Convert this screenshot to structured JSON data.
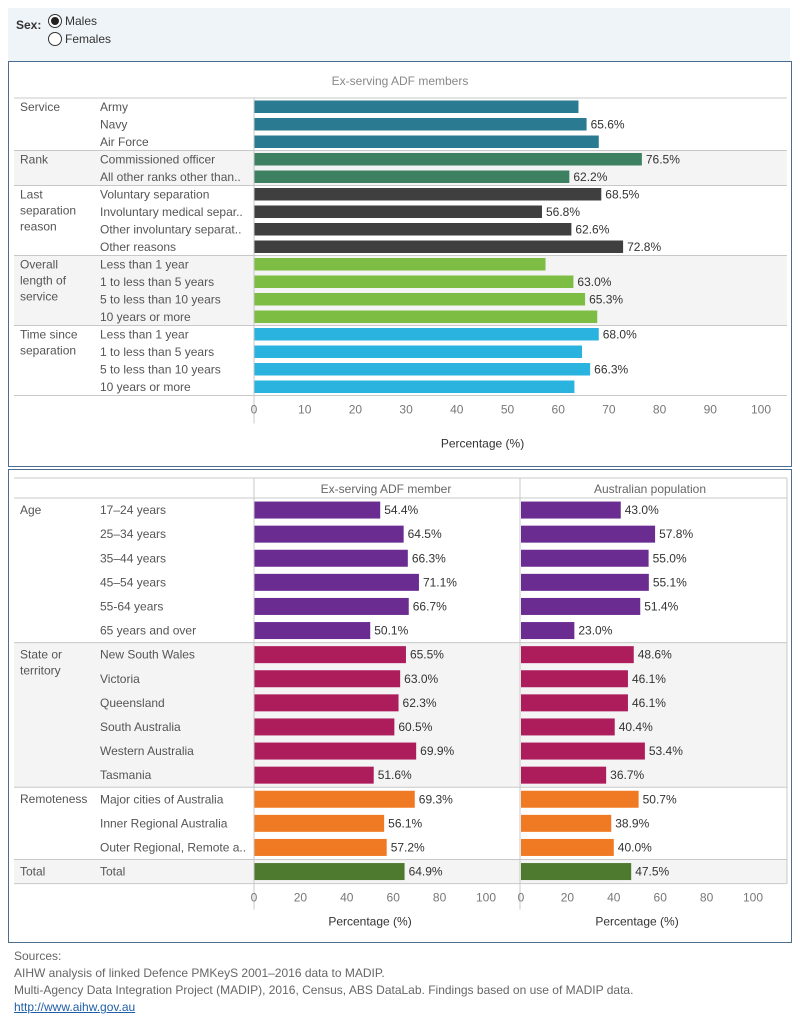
{
  "filter": {
    "label": "Sex:",
    "options": [
      {
        "label": "Males",
        "selected": true
      },
      {
        "label": "Females",
        "selected": false
      }
    ]
  },
  "chart_data": [
    {
      "type": "bar",
      "orientation": "horizontal",
      "title": "Ex-serving ADF members",
      "xlabel": "Percentage (%)",
      "xlim": [
        0,
        100
      ],
      "xticks": [
        0,
        10,
        20,
        30,
        40,
        50,
        60,
        70,
        80,
        90,
        100
      ],
      "groups": [
        {
          "name": "Service",
          "color": "#2a7b91",
          "items": [
            {
              "label": "Army",
              "value": 64.0,
              "show_label": false
            },
            {
              "label": "Navy",
              "value": 65.6,
              "show_label": true
            },
            {
              "label": "Air Force",
              "value": 68.0,
              "show_label": false
            }
          ]
        },
        {
          "name": "Rank",
          "color": "#3d8062",
          "items": [
            {
              "label": "Commissioned officer",
              "value": 76.5,
              "show_label": true
            },
            {
              "label": "All other ranks other than..",
              "value": 62.2,
              "show_label": true
            }
          ]
        },
        {
          "name": "Last separation reason",
          "color": "#3f3f3f",
          "items": [
            {
              "label": "Voluntary separation",
              "value": 68.5,
              "show_label": true
            },
            {
              "label": "Involuntary medical separ..",
              "value": 56.8,
              "show_label": true
            },
            {
              "label": "Other involuntary separat..",
              "value": 62.6,
              "show_label": true
            },
            {
              "label": "Other reasons",
              "value": 72.8,
              "show_label": true
            }
          ]
        },
        {
          "name": "Overall length of service",
          "color": "#7ebd44",
          "items": [
            {
              "label": "Less than 1 year",
              "value": 57.5,
              "show_label": false
            },
            {
              "label": "1 to less than 5 years",
              "value": 63.0,
              "show_label": true
            },
            {
              "label": "5 to less than 10 years",
              "value": 65.3,
              "show_label": true
            },
            {
              "label": "10 years or more",
              "value": 67.7,
              "show_label": false
            }
          ]
        },
        {
          "name": "Time since separation",
          "color": "#2bb3e0",
          "items": [
            {
              "label": "Less than 1 year",
              "value": 68.0,
              "show_label": true
            },
            {
              "label": "1 to less than 5 years",
              "value": 64.7,
              "show_label": false
            },
            {
              "label": "5 to less than 10 years",
              "value": 66.3,
              "show_label": true
            },
            {
              "label": "10 years or more",
              "value": 63.2,
              "show_label": false
            }
          ]
        }
      ]
    },
    {
      "type": "bar",
      "orientation": "horizontal",
      "panels": [
        "Ex-serving ADF member",
        "Australian population"
      ],
      "xlabel": "Percentage (%)",
      "xlim": [
        0,
        100
      ],
      "xticks": [
        0,
        20,
        40,
        60,
        80,
        100
      ],
      "groups": [
        {
          "name": "Age",
          "color": "#6b2c91",
          "items": [
            {
              "label": "17–24 years",
              "values": [
                54.4,
                43.0
              ]
            },
            {
              "label": "25–34 years",
              "values": [
                64.5,
                57.8
              ]
            },
            {
              "label": "35–44 years",
              "values": [
                66.3,
                55.0
              ]
            },
            {
              "label": "45–54 years",
              "values": [
                71.1,
                55.1
              ]
            },
            {
              "label": "55-64 years",
              "values": [
                66.7,
                51.4
              ]
            },
            {
              "label": "65 years and over",
              "values": [
                50.1,
                23.0
              ]
            }
          ]
        },
        {
          "name": "State or territory",
          "color": "#ad1d5b",
          "items": [
            {
              "label": "New South Wales",
              "values": [
                65.5,
                48.6
              ]
            },
            {
              "label": "Victoria",
              "values": [
                63.0,
                46.1
              ]
            },
            {
              "label": "Queensland",
              "values": [
                62.3,
                46.1
              ]
            },
            {
              "label": "South Australia",
              "values": [
                60.5,
                40.4
              ]
            },
            {
              "label": "Western Australia",
              "values": [
                69.9,
                53.4
              ]
            },
            {
              "label": "Tasmania",
              "values": [
                51.6,
                36.7
              ]
            }
          ]
        },
        {
          "name": "Remoteness",
          "color": "#f07a24",
          "items": [
            {
              "label": "Major cities of Australia",
              "values": [
                69.3,
                50.7
              ]
            },
            {
              "label": "Inner Regional Australia",
              "values": [
                56.1,
                38.9
              ]
            },
            {
              "label": "Outer Regional, Remote a..",
              "values": [
                57.2,
                40.0
              ]
            }
          ]
        },
        {
          "name": "Total",
          "color": "#4e7a30",
          "items": [
            {
              "label": "Total",
              "values": [
                64.9,
                47.5
              ]
            }
          ]
        }
      ]
    }
  ],
  "sources": {
    "heading": "Sources:",
    "line1": "AIHW analysis of linked Defence PMKeyS 2001–2016 data to MADIP.",
    "line2": "Multi-Agency Data Integration Project (MADIP), 2016, Census, ABS DataLab. Findings based on use of MADIP data.",
    "link": "http://www.aihw.gov.au"
  }
}
